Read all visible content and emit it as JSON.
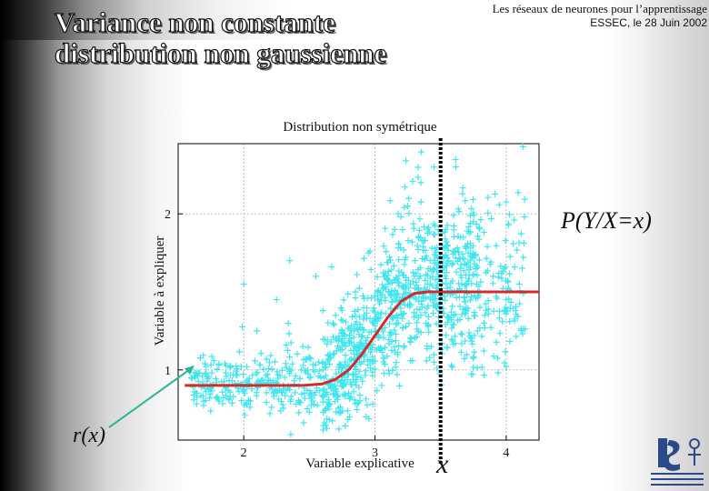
{
  "slide": {
    "title_line1": "Variance non constante",
    "title_line2": "distribution non gaussienne",
    "header_line1": "Les réseaux de neurones pour l’apprentissage",
    "header_line2": "ESSEC, le 28 Juin 2002"
  },
  "annotations": {
    "pyx": "P(Y/X=x)",
    "rx": "r(x)",
    "x": "x"
  },
  "colors": {
    "points": "#3fe6ef",
    "curve": "#d42a2a",
    "arrow": "#2bb89a",
    "cutline": "#000000"
  },
  "chart_data": {
    "type": "scatter",
    "title": "Distribution non symétrique",
    "xlabel": "Variable explicative",
    "ylabel": "Variable à expliquer",
    "xlim": [
      1.5,
      4.25
    ],
    "ylim": [
      0.55,
      2.45
    ],
    "xticks": [
      2,
      3,
      4
    ],
    "yticks": [
      1,
      2
    ],
    "grid": true,
    "marker": "+",
    "regression_curve": {
      "x": [
        1.55,
        2.0,
        2.25,
        2.45,
        2.6,
        2.7,
        2.8,
        2.9,
        3.0,
        3.1,
        3.2,
        3.3,
        3.4,
        3.6,
        3.8,
        4.0,
        4.25
      ],
      "y": [
        0.9,
        0.9,
        0.9,
        0.9,
        0.91,
        0.94,
        1.0,
        1.1,
        1.22,
        1.34,
        1.44,
        1.49,
        1.5,
        1.5,
        1.5,
        1.5,
        1.5
      ]
    },
    "conditional_x": 3.5,
    "scatter_sample": {
      "x": [
        1.6,
        1.75,
        1.9,
        2.0,
        2.05,
        2.1,
        2.2,
        2.25,
        2.3,
        2.35,
        2.4,
        2.45,
        2.5,
        2.55,
        2.6,
        2.65,
        2.7,
        2.75,
        2.8,
        2.85,
        2.9,
        2.95,
        3.0,
        3.05,
        3.1,
        3.15,
        3.2,
        3.25,
        3.3,
        3.35,
        3.4,
        3.45,
        3.5,
        3.55,
        3.6,
        3.65,
        3.7,
        3.75,
        3.8,
        3.9,
        4.0,
        4.1
      ],
      "y": [
        0.95,
        0.88,
        1.02,
        1.55,
        0.8,
        1.25,
        0.72,
        1.45,
        0.9,
        1.7,
        0.78,
        1.15,
        0.95,
        1.6,
        1.05,
        0.75,
        1.35,
        1.2,
        0.85,
        1.5,
        1.1,
        1.75,
        1.3,
        0.9,
        1.55,
        1.9,
        1.45,
        2.05,
        1.6,
        2.2,
        1.55,
        2.3,
        1.45,
        1.8,
        1.35,
        1.65,
        1.5,
        1.95,
        1.4,
        1.6,
        1.45,
        1.55
      ]
    }
  }
}
